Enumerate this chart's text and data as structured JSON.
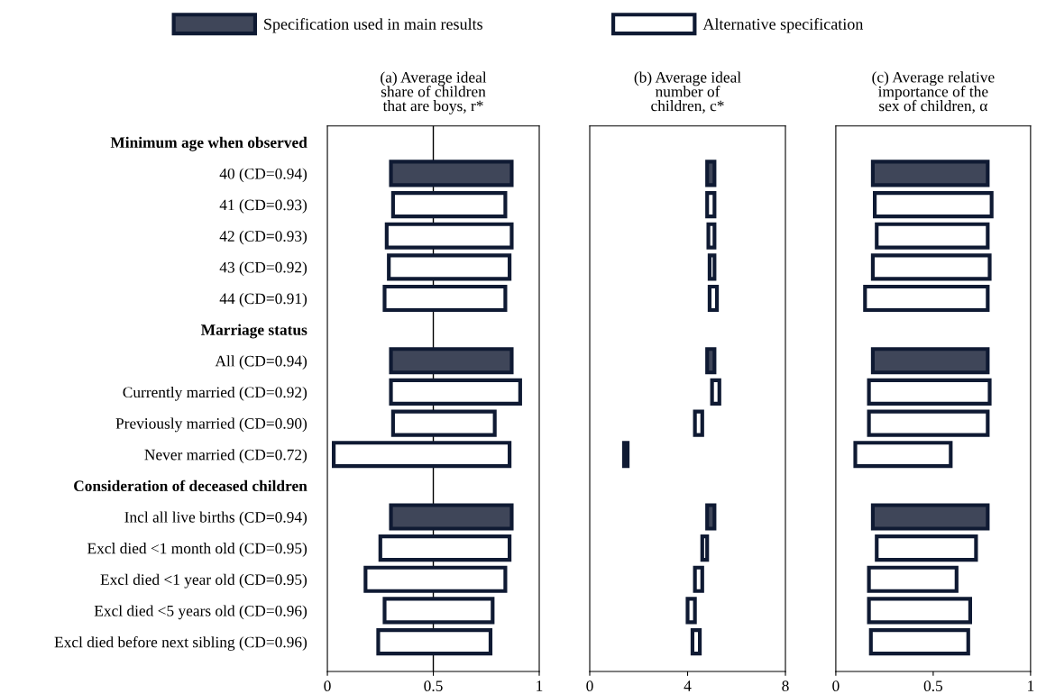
{
  "chart_data": [
    {
      "type": "bar",
      "orientation": "horizontal",
      "title": "(a) Average ideal\nshare of children\nthat are boys, r*",
      "legend": "top",
      "categories": [
        "Minimum age when observed",
        "40 (CD=0.94)",
        "41 (CD=0.93)",
        "42 (CD=0.93)",
        "43 (CD=0.92)",
        "44 (CD=0.91)",
        "Marriage status",
        "All (CD=0.94)",
        "Currently married (CD=0.92)",
        "Previously married (CD=0.90)",
        "Never married (CD=0.72)",
        "Consideration of deceased children",
        "Incl all live births (CD=0.94)",
        "Excl died <1 month old (CD=0.95)",
        "Excl died <1 year old (CD=0.95)",
        "Excl died <5 years old (CD=0.96)",
        "Excl died before next sibling (CD=0.96)"
      ],
      "series": [
        {
          "name": "Specification used in main results",
          "color": "#3f4659",
          "base": [
            null,
            0.3,
            null,
            null,
            null,
            null,
            null,
            0.3,
            null,
            null,
            null,
            null,
            0.3,
            null,
            null,
            null,
            null
          ],
          "values": [
            null,
            0.57,
            null,
            null,
            null,
            null,
            null,
            0.57,
            null,
            null,
            null,
            null,
            0.57,
            null,
            null,
            null,
            null
          ]
        },
        {
          "name": "Alternative specification",
          "color": "#ffffff",
          "base": [
            null,
            null,
            0.31,
            0.28,
            0.29,
            0.27,
            null,
            null,
            0.3,
            0.31,
            0.03,
            null,
            null,
            0.25,
            0.18,
            0.27,
            0.24
          ],
          "values": [
            null,
            null,
            0.53,
            0.59,
            0.57,
            0.57,
            null,
            null,
            0.61,
            0.48,
            0.83,
            null,
            null,
            0.61,
            0.66,
            0.51,
            0.53
          ]
        }
      ],
      "xlim": [
        0,
        1
      ],
      "xticks": [
        0,
        0.5,
        1
      ],
      "ref_lines": [
        {
          "axis": "x",
          "value": 0.5,
          "color": "#000000"
        }
      ],
      "grid": false
    },
    {
      "type": "bar",
      "orientation": "horizontal",
      "title": "(b) Average ideal\nnumber of\nchildren, c*",
      "categories": [
        null,
        null,
        null,
        null,
        null,
        null,
        null,
        null,
        null,
        null,
        null,
        null,
        null,
        null,
        null,
        null,
        null
      ],
      "series": [
        {
          "color": "#3f4659",
          "base": [
            null,
            4.8,
            null,
            null,
            null,
            null,
            null,
            4.8,
            null,
            null,
            null,
            null,
            4.8,
            null,
            null,
            null,
            null
          ],
          "values": [
            null,
            0.3,
            null,
            null,
            null,
            null,
            null,
            0.3,
            null,
            null,
            null,
            null,
            0.3,
            null,
            null,
            null,
            null
          ]
        },
        {
          "color": "#ffffff",
          "base": [
            null,
            null,
            4.8,
            4.85,
            4.9,
            4.9,
            null,
            null,
            5.0,
            4.3,
            1.4,
            null,
            null,
            4.6,
            4.3,
            4.0,
            4.2
          ],
          "values": [
            null,
            null,
            0.3,
            0.25,
            0.2,
            0.3,
            null,
            null,
            0.3,
            0.3,
            0.15,
            null,
            null,
            0.2,
            0.3,
            0.3,
            0.3
          ]
        }
      ],
      "xlim": [
        0,
        8
      ],
      "xticks": [
        0,
        4,
        8
      ],
      "grid": false
    },
    {
      "type": "bar",
      "orientation": "horizontal",
      "title": "(c) Average relative\nimportance of the\nsex of children, α",
      "categories": [
        null,
        null,
        null,
        null,
        null,
        null,
        null,
        null,
        null,
        null,
        null,
        null,
        null,
        null,
        null,
        null,
        null
      ],
      "series": [
        {
          "color": "#3f4659",
          "base": [
            null,
            0.19,
            null,
            null,
            null,
            null,
            null,
            0.19,
            null,
            null,
            null,
            null,
            0.19,
            null,
            null,
            null,
            null
          ],
          "values": [
            null,
            0.59,
            null,
            null,
            null,
            null,
            null,
            0.59,
            null,
            null,
            null,
            null,
            0.59,
            null,
            null,
            null,
            null
          ]
        },
        {
          "color": "#ffffff",
          "base": [
            null,
            null,
            0.2,
            0.21,
            0.19,
            0.15,
            null,
            null,
            0.17,
            0.17,
            0.1,
            null,
            null,
            0.21,
            0.17,
            0.17,
            0.18
          ],
          "values": [
            null,
            null,
            0.6,
            0.57,
            0.6,
            0.63,
            null,
            null,
            0.62,
            0.61,
            0.49,
            null,
            null,
            0.51,
            0.45,
            0.52,
            0.5
          ]
        }
      ],
      "xlim": [
        0,
        1
      ],
      "xticks": [
        0,
        0.5,
        1
      ],
      "grid": false
    }
  ]
}
